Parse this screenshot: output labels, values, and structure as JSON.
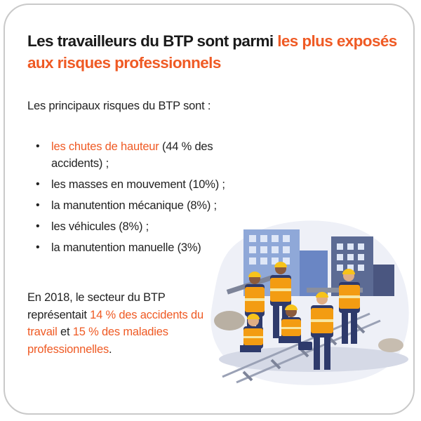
{
  "title": {
    "part1": "Les travailleurs du BTP sont parmi ",
    "part2": "les plus exposés aux risques professionnels"
  },
  "intro": "Les principaux risques du BTP sont :",
  "risks": [
    {
      "highlight": "les chutes de hauteur",
      "rest": " (44 % des accidents) ;"
    },
    {
      "highlight": "",
      "rest": "les masses en mouvement (10%) ;"
    },
    {
      "highlight": "",
      "rest": "la manutention mécanique (8%) ;"
    },
    {
      "highlight": "",
      "rest": "les véhicules (8%) ;"
    },
    {
      "highlight": "",
      "rest": "la manutention manuelle (3%)"
    }
  ],
  "stats": {
    "part1": "En 2018, le secteur du BTP représentait ",
    "hl1": "14 % des accidents du travail",
    "part2": " et ",
    "hl2": "15 % des maladies professionnelles",
    "part3": "."
  },
  "colors": {
    "accent": "#ef5a24",
    "text": "#222222",
    "border": "#c9c9c9",
    "vest": "#f39c12",
    "helmet": "#f7c31b",
    "workwear": "#2e3a6b"
  }
}
